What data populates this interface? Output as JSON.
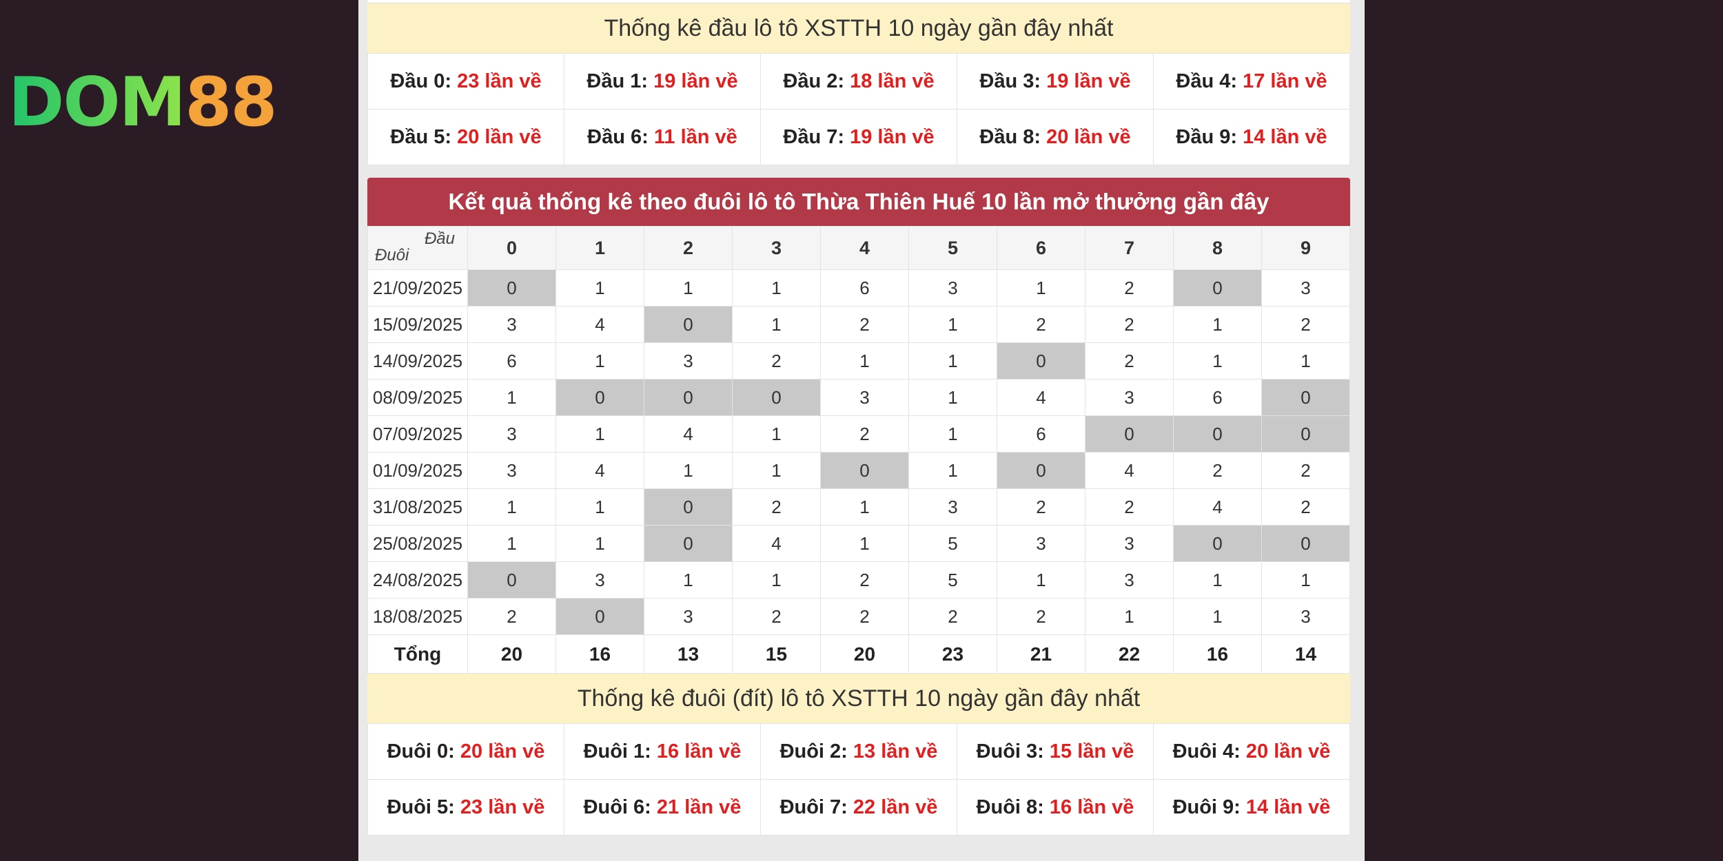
{
  "logo": {
    "part1": "DOM",
    "part2": "88"
  },
  "dau_section": {
    "title": "Thống kê đầu lô tô XSTTH 10 ngày gần đây nhất",
    "rows": [
      [
        {
          "label": "Đầu 0:",
          "value": "23 lần về"
        },
        {
          "label": "Đầu 1:",
          "value": "19 lần về"
        },
        {
          "label": "Đầu 2:",
          "value": "18 lần về"
        },
        {
          "label": "Đầu 3:",
          "value": "19 lần về"
        },
        {
          "label": "Đầu 4:",
          "value": "17 lần về"
        }
      ],
      [
        {
          "label": "Đầu 5:",
          "value": "20 lần về"
        },
        {
          "label": "Đầu 6:",
          "value": "11 lần về"
        },
        {
          "label": "Đầu 7:",
          "value": "19 lần về"
        },
        {
          "label": "Đầu 8:",
          "value": "20 lần về"
        },
        {
          "label": "Đầu 9:",
          "value": "14 lần về"
        }
      ]
    ]
  },
  "duoi_table": {
    "title": "Kết quả thống kê theo đuôi lô tô Thừa Thiên Huế 10 lần mở thưởng gần đây",
    "corner_top": "Đầu",
    "corner_bottom": "Đuôi",
    "columns": [
      "0",
      "1",
      "2",
      "3",
      "4",
      "5",
      "6",
      "7",
      "8",
      "9"
    ],
    "rows": [
      {
        "date": "21/09/2025",
        "values": [
          "0",
          "1",
          "1",
          "1",
          "6",
          "3",
          "1",
          "2",
          "0",
          "3"
        ]
      },
      {
        "date": "15/09/2025",
        "values": [
          "3",
          "4",
          "0",
          "1",
          "2",
          "1",
          "2",
          "2",
          "1",
          "2"
        ]
      },
      {
        "date": "14/09/2025",
        "values": [
          "6",
          "1",
          "3",
          "2",
          "1",
          "1",
          "0",
          "2",
          "1",
          "1"
        ]
      },
      {
        "date": "08/09/2025",
        "values": [
          "1",
          "0",
          "0",
          "0",
          "3",
          "1",
          "4",
          "3",
          "6",
          "0"
        ]
      },
      {
        "date": "07/09/2025",
        "values": [
          "3",
          "1",
          "4",
          "1",
          "2",
          "1",
          "6",
          "0",
          "0",
          "0"
        ]
      },
      {
        "date": "01/09/2025",
        "values": [
          "3",
          "4",
          "1",
          "1",
          "0",
          "1",
          "0",
          "4",
          "2",
          "2"
        ]
      },
      {
        "date": "31/08/2025",
        "values": [
          "1",
          "1",
          "0",
          "2",
          "1",
          "3",
          "2",
          "2",
          "4",
          "2"
        ]
      },
      {
        "date": "25/08/2025",
        "values": [
          "1",
          "1",
          "0",
          "4",
          "1",
          "5",
          "3",
          "3",
          "0",
          "0"
        ]
      },
      {
        "date": "24/08/2025",
        "values": [
          "0",
          "3",
          "1",
          "1",
          "2",
          "5",
          "1",
          "3",
          "1",
          "1"
        ]
      },
      {
        "date": "18/08/2025",
        "values": [
          "2",
          "0",
          "3",
          "2",
          "2",
          "2",
          "2",
          "1",
          "1",
          "3"
        ]
      }
    ],
    "total_label": "Tổng",
    "totals": [
      "20",
      "16",
      "13",
      "15",
      "20",
      "23",
      "21",
      "22",
      "16",
      "14"
    ]
  },
  "duoi_section": {
    "title": "Thống kê đuôi (đít) lô tô XSTTH 10 ngày gần đây nhất",
    "rows": [
      [
        {
          "label": "Đuôi 0:",
          "value": "20 lần về"
        },
        {
          "label": "Đuôi 1:",
          "value": "16 lần về"
        },
        {
          "label": "Đuôi 2:",
          "value": "13 lần về"
        },
        {
          "label": "Đuôi 3:",
          "value": "15 lần về"
        },
        {
          "label": "Đuôi 4:",
          "value": "20 lần về"
        }
      ],
      [
        {
          "label": "Đuôi 5:",
          "value": "23 lần về"
        },
        {
          "label": "Đuôi 6:",
          "value": "21 lần về"
        },
        {
          "label": "Đuôi 7:",
          "value": "22 lần về"
        },
        {
          "label": "Đuôi 8:",
          "value": "16 lần về"
        },
        {
          "label": "Đuôi 9:",
          "value": "14 lần về"
        }
      ]
    ]
  },
  "colors": {
    "highlight": "#e21e1e",
    "header_red": "#b23a48",
    "title_yellow": "#fdf2c6",
    "zero_cell": "#c8c8c8"
  }
}
